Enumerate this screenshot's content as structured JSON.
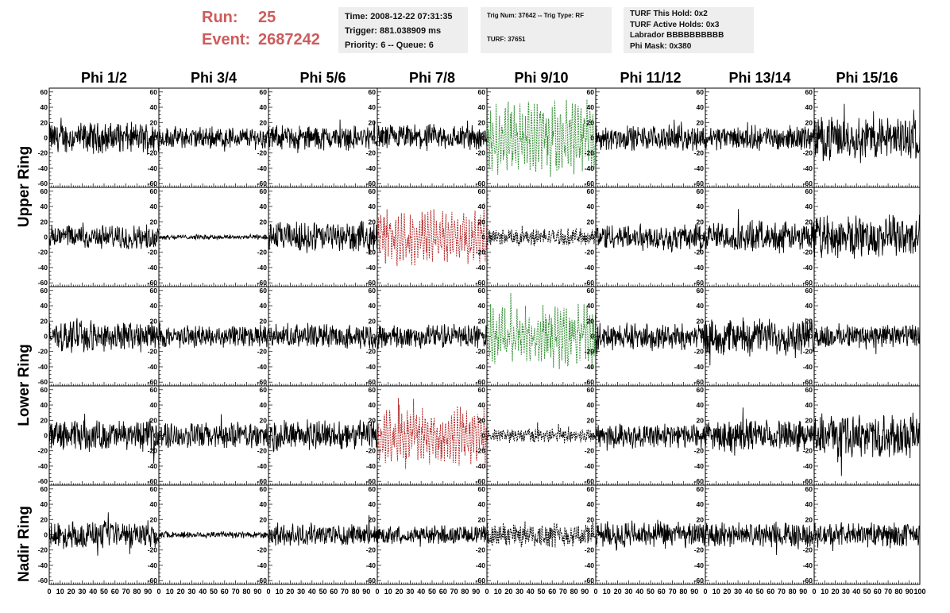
{
  "header": {
    "run_label": "Run:",
    "run_value": "25",
    "event_label": "Event:",
    "event_value": "2687242",
    "info1": [
      "Time: 2008-12-22 07:31:35",
      "Trigger: 881.038909 ms",
      "Priority: 6 -- Queue: 6"
    ],
    "info2": [
      "Trig Num: 37642 -- Trig Type: RF",
      "",
      "TURF: 37651"
    ],
    "info3": [
      "TURF This Hold: 0x2",
      "TURF Active Holds: 0x3",
      "Labrador BBBBBBBBBB",
      "Phi Mask: 0x380"
    ]
  },
  "colors": {
    "accent_red": "#cd5c5c",
    "normal_trace": "#000000",
    "triggered_trace_green": "#2e8b2e",
    "triggered_trace_red": "#b22222",
    "info_background": "#eeeeee"
  },
  "chart_data": {
    "type": "line",
    "columns": [
      "Phi 1/2",
      "Phi 3/4",
      "Phi 5/6",
      "Phi 7/8",
      "Phi 9/10",
      "Phi 11/12",
      "Phi 13/14",
      "Phi 15/16"
    ],
    "rows": [
      "Upper Ring",
      "Lower Ring",
      "Nadir Ring"
    ],
    "sub_rows_per_ring": {
      "Upper Ring": 2,
      "Lower Ring": 2,
      "Nadir Ring": 1
    },
    "xlim": [
      0,
      100
    ],
    "ylim": [
      -65,
      65
    ],
    "x_tick_labels": [
      "0",
      "10",
      "20",
      "30",
      "40",
      "50",
      "60",
      "70",
      "80",
      "90",
      "100"
    ],
    "y_tick_labels": [
      "-60",
      "-40",
      "-20",
      "0",
      "20",
      "40",
      "60"
    ],
    "grid": false,
    "highlighted_panels": [
      {
        "row": 0,
        "col": 4,
        "color": "green",
        "style": "dashed",
        "amplitude": 45
      },
      {
        "row": 1,
        "col": 3,
        "color": "red",
        "style": "dashed",
        "amplitude": 33
      },
      {
        "row": 1,
        "col": 4,
        "color": "black",
        "style": "dashed",
        "amplitude": 14
      },
      {
        "row": 2,
        "col": 4,
        "color": "green",
        "style": "dashed",
        "amplitude": 38
      },
      {
        "row": 3,
        "col": 3,
        "color": "red",
        "style": "dashed",
        "amplitude": 35
      },
      {
        "row": 3,
        "col": 4,
        "color": "black",
        "style": "dashed",
        "amplitude": 12
      },
      {
        "row": 4,
        "col": 4,
        "color": "black",
        "style": "dashed",
        "amplitude": 20
      }
    ],
    "trace_amplitude": [
      [
        25,
        18,
        20,
        22,
        45,
        20,
        20,
        35
      ],
      [
        20,
        4,
        25,
        33,
        14,
        22,
        25,
        35
      ],
      [
        25,
        18,
        20,
        20,
        38,
        22,
        30,
        20
      ],
      [
        25,
        22,
        25,
        35,
        12,
        20,
        25,
        35
      ],
      [
        22,
        6,
        18,
        15,
        20,
        22,
        20,
        20
      ]
    ]
  }
}
